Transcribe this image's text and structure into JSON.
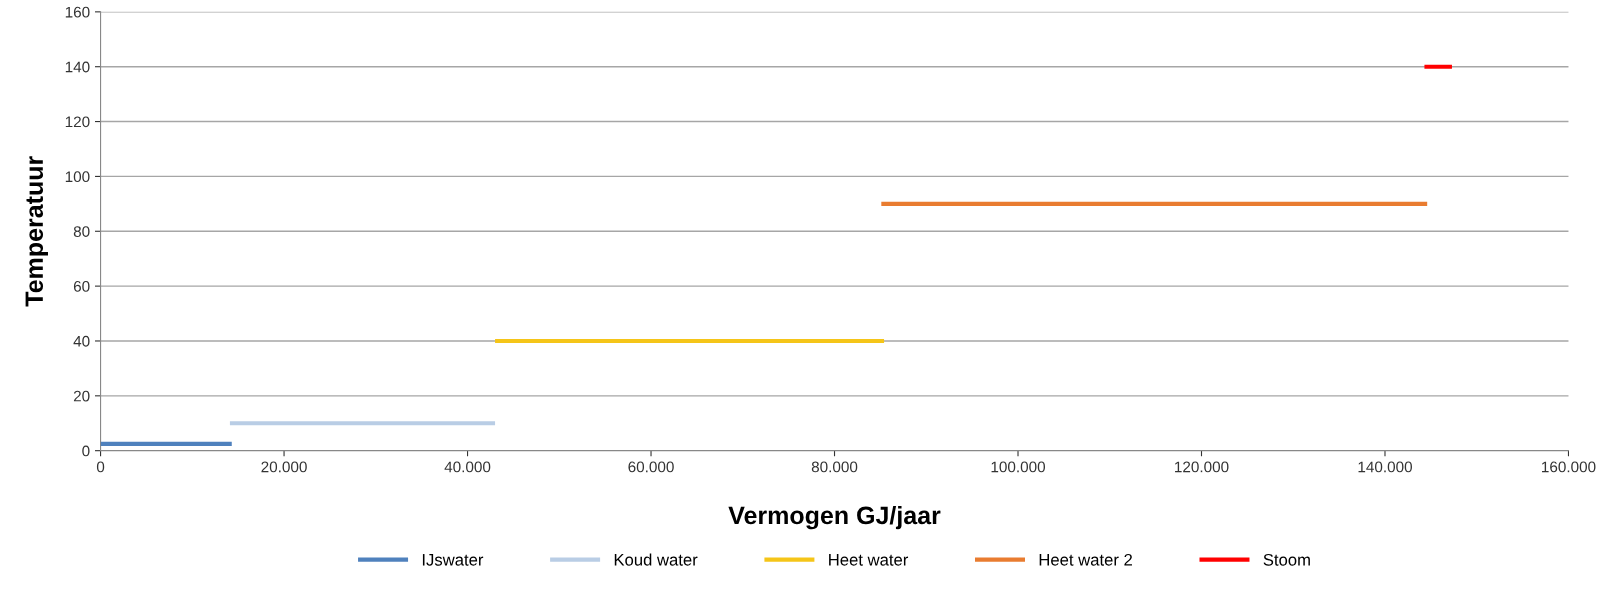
{
  "chart_data": {
    "type": "line",
    "xlabel": "Vermogen GJ/jaar",
    "ylabel": "Temperatuur",
    "series": [
      {
        "name": "IJswater",
        "color": "#4f81bd",
        "x": [
          0,
          14300
        ],
        "values": [
          2.5,
          2.5
        ]
      },
      {
        "name": "Koud water",
        "color": "#b9cde5",
        "x": [
          14100,
          43000
        ],
        "values": [
          10,
          10
        ]
      },
      {
        "name": "Heet water",
        "color": "#f5c518",
        "x": [
          43000,
          85400
        ],
        "values": [
          40,
          40
        ]
      },
      {
        "name": "Heet water 2",
        "color": "#e97c30",
        "x": [
          85100,
          144600
        ],
        "values": [
          90,
          90
        ]
      },
      {
        "name": "Stoom",
        "color": "#ff0000",
        "x": [
          144300,
          147300
        ],
        "values": [
          140,
          140
        ]
      }
    ],
    "xlim": [
      0,
      160000
    ],
    "xticks": [
      0,
      {
        "value": 20000,
        "label": "20.000"
      },
      {
        "value": 40000,
        "label": "40.000"
      },
      {
        "value": 60000,
        "label": "60.000"
      },
      {
        "value": 80000,
        "label": "80.000"
      },
      {
        "value": 100000,
        "label": "100.000"
      },
      {
        "value": 120000,
        "label": "120.000"
      },
      {
        "value": 140000,
        "label": "140.000"
      },
      {
        "value": 160000,
        "label": "160.000"
      }
    ],
    "ylim": [
      0,
      160
    ],
    "yticks": [
      0,
      20,
      40,
      60,
      80,
      100,
      120,
      140,
      160
    ],
    "grid": "y",
    "legend": "bottom",
    "marker": "none",
    "line_style": "solid"
  }
}
